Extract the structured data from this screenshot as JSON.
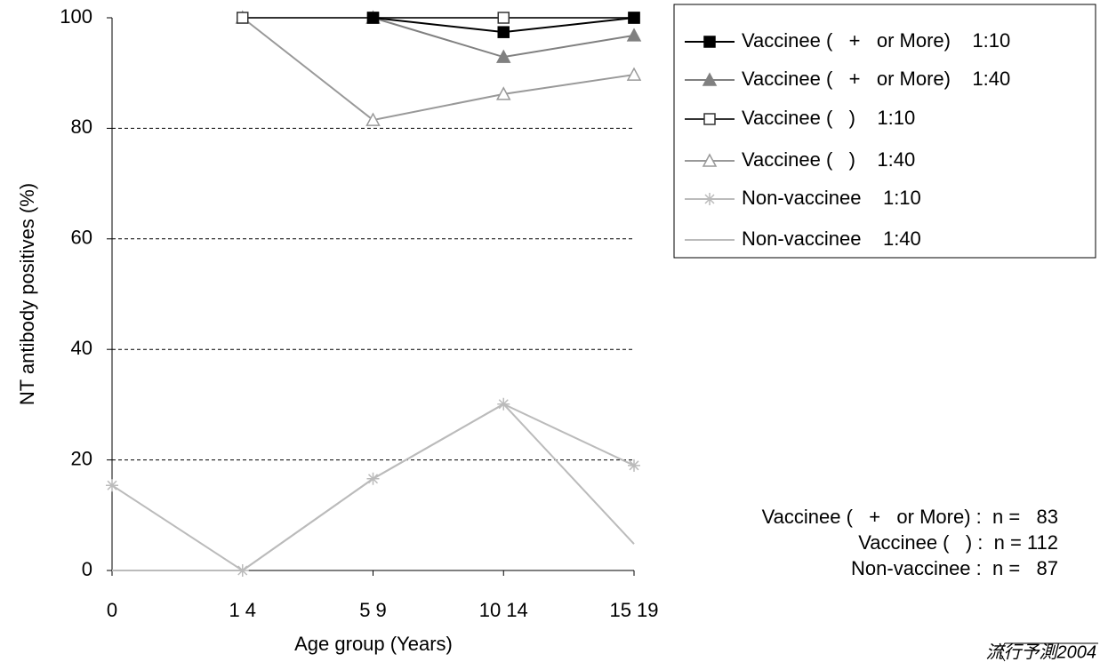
{
  "chart_data": {
    "type": "line",
    "x_label": "Age group (Years)",
    "y_label": "NT antibody positives (%)",
    "categories": [
      "0",
      "1 4",
      "5 9",
      "10 14",
      "15 19"
    ],
    "ylim": [
      0,
      100
    ],
    "yticks": [
      0,
      20,
      40,
      60,
      80,
      100
    ],
    "grid": true,
    "legend": "top-right",
    "series": [
      {
        "name": "Vaccinee (   +   or More)    1:10",
        "color": "#000000",
        "marker": "square",
        "filled": true,
        "values": [
          null,
          null,
          100,
          97.4,
          100
        ]
      },
      {
        "name": "Vaccinee (   +   or More)    1:40",
        "color": "#808080",
        "marker": "triangle",
        "filled": true,
        "values": [
          null,
          null,
          100,
          92.9,
          96.8
        ]
      },
      {
        "name": "Vaccinee (   )    1:10",
        "color": "#333333",
        "marker": "square",
        "filled": false,
        "values": [
          null,
          100,
          100,
          100,
          100
        ]
      },
      {
        "name": "Vaccinee (   )    1:40",
        "color": "#999999",
        "marker": "triangle",
        "filled": false,
        "values": [
          null,
          100,
          81.5,
          86.2,
          89.7
        ]
      },
      {
        "name": "Non-vaccinee    1:10",
        "color": "#bbbbbb",
        "marker": "star",
        "filled": false,
        "values": [
          15.4,
          0,
          16.6,
          30.1,
          19
        ]
      },
      {
        "name": "Non-vaccinee    1:40",
        "color": "#bbbbbb",
        "marker": "none",
        "filled": false,
        "values": [
          0,
          0,
          16.6,
          30.1,
          4.8
        ]
      }
    ],
    "notes": [
      "Vaccinee (   +   or More) :  n =   83",
      "Vaccinee (   ) :  n = 112",
      "Non-vaccinee :  n =   87"
    ],
    "source": "流行予測2004"
  }
}
